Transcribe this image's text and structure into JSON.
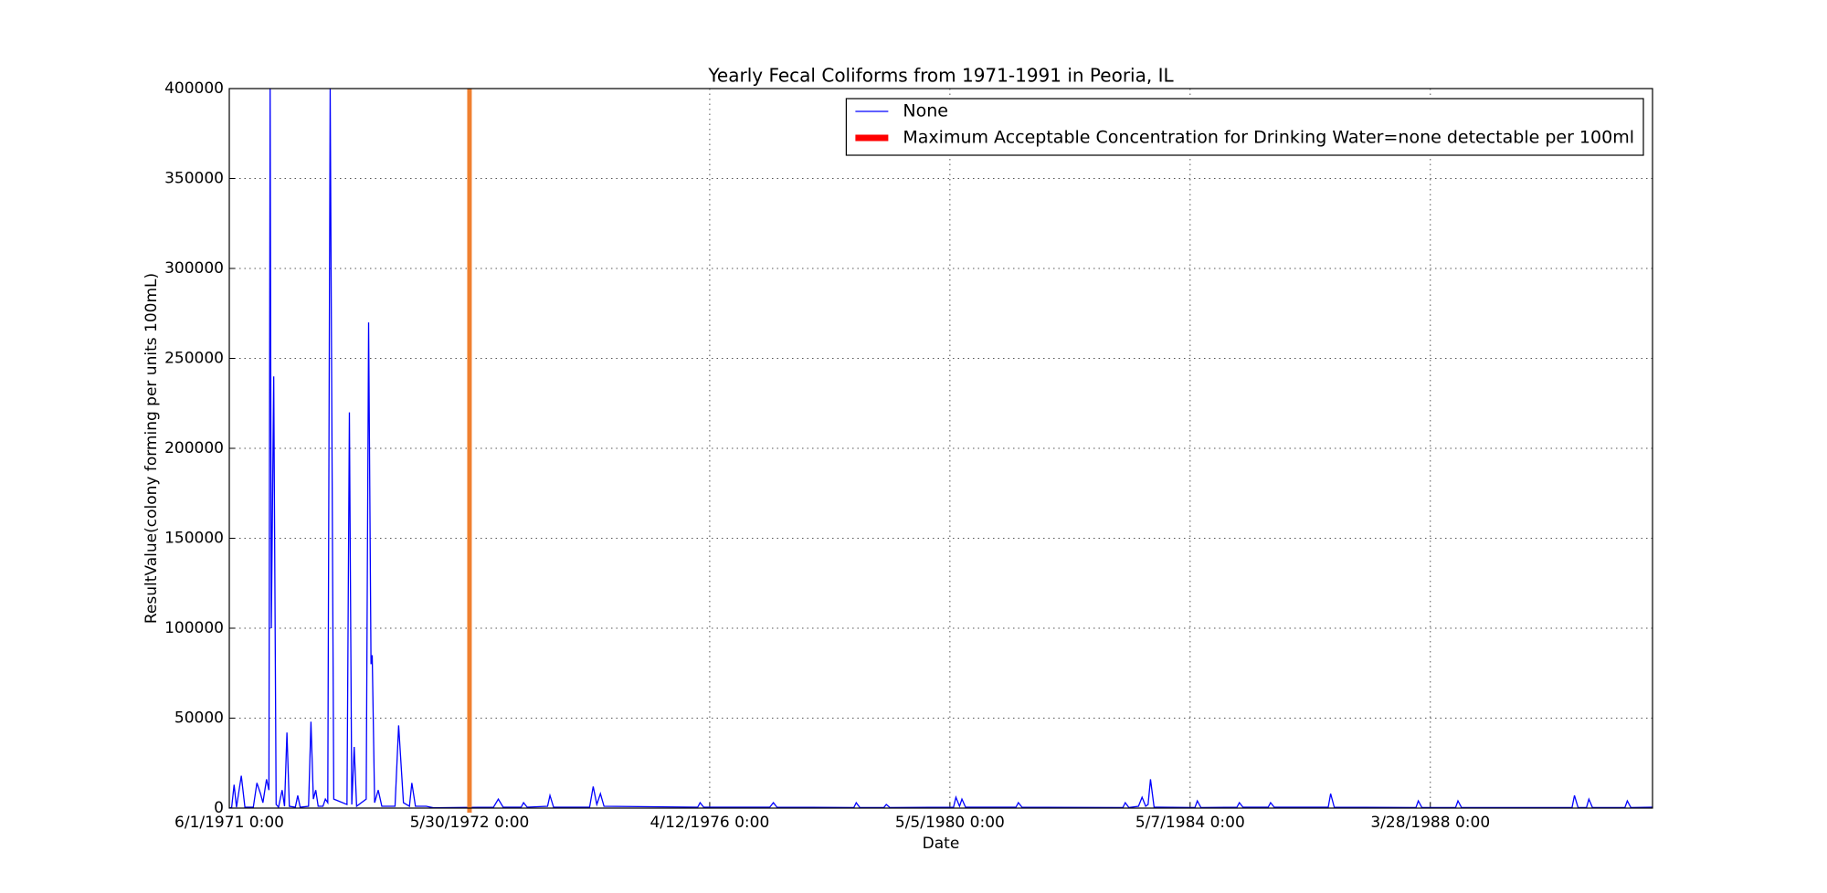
{
  "chart_data": {
    "type": "line",
    "title": "Yearly Fecal Coliforms from 1971-1991 in Peoria, IL",
    "x_label": "Date",
    "y_label": "ResultValue(colony forming per units 100mL)",
    "x": [
      0,
      2,
      4,
      6,
      10,
      13,
      20,
      23,
      26,
      28,
      31,
      33,
      34,
      35,
      37,
      39,
      41,
      44,
      46,
      48,
      50,
      55,
      57,
      59,
      66,
      68,
      70,
      72,
      74,
      78,
      80,
      82,
      84,
      87,
      98,
      100,
      102,
      104,
      106,
      114,
      116,
      118,
      119,
      121,
      124,
      127,
      138,
      141,
      145,
      150,
      152,
      155,
      164,
      170,
      220,
      224,
      228,
      243,
      245,
      248,
      265,
      267,
      270,
      300,
      303,
      306,
      309,
      312,
      390,
      392,
      395,
      450,
      453,
      456,
      520,
      522,
      525,
      545,
      547,
      550,
      603,
      605,
      608,
      610,
      613,
      655,
      657,
      660,
      744,
      746,
      749,
      757,
      760,
      763,
      765,
      767,
      770,
      804,
      806,
      809,
      839,
      841,
      844,
      865,
      867,
      870,
      915,
      917,
      920,
      988,
      990,
      993,
      1021,
      1023,
      1026,
      1118,
      1120,
      1123,
      1130,
      1132,
      1135,
      1162,
      1164,
      1167,
      1185
    ],
    "series": [
      {
        "name": "None",
        "color": "#0000ff",
        "values": [
          0,
          500,
          13000,
          500,
          18000,
          500,
          500,
          14000,
          8000,
          3000,
          16000,
          10000,
          400000,
          100000,
          240000,
          2000,
          500,
          10000,
          1000,
          42000,
          1000,
          500,
          7000,
          500,
          1000,
          48000,
          5000,
          10000,
          1000,
          1000,
          5000,
          3000,
          400000,
          5000,
          2000,
          220000,
          2000,
          34000,
          1000,
          5000,
          270000,
          80000,
          85000,
          3000,
          10000,
          1000,
          1000,
          46000,
          3000,
          1000,
          14000,
          1000,
          1000,
          200,
          500,
          5000,
          500,
          500,
          3000,
          500,
          1000,
          7000,
          500,
          500,
          12000,
          2000,
          8000,
          1000,
          500,
          3000,
          500,
          500,
          3000,
          500,
          300,
          3000,
          300,
          300,
          2000,
          300,
          500,
          6000,
          1000,
          5000,
          500,
          500,
          3000,
          500,
          300,
          3000,
          300,
          1000,
          6000,
          1000,
          2000,
          16000,
          500,
          300,
          4000,
          300,
          500,
          3000,
          500,
          500,
          3000,
          500,
          500,
          8000,
          500,
          300,
          4000,
          300,
          300,
          4000,
          300,
          300,
          7000,
          300,
          300,
          5000,
          300,
          300,
          4000,
          300,
          500
        ]
      }
    ],
    "vlines": [
      {
        "name": "Maximum Acceptable Concentration for Drinking Water=none detectable per 100ml",
        "x": 200,
        "color": "#f08030",
        "legend_color": "#ff0000"
      }
    ],
    "xlim": [
      0,
      1185
    ],
    "xticks": [
      {
        "value": 0,
        "label": "6/1/1971 0:00"
      },
      {
        "value": 200,
        "label": "5/30/1972 0:00"
      },
      {
        "value": 400,
        "label": "4/12/1976 0:00"
      },
      {
        "value": 600,
        "label": "5/5/1980 0:00"
      },
      {
        "value": 800,
        "label": "5/7/1984 0:00"
      },
      {
        "value": 1000,
        "label": "3/28/1988 0:00"
      }
    ],
    "ylim": [
      0,
      400000
    ],
    "yticks": [
      0,
      50000,
      100000,
      150000,
      200000,
      250000,
      300000,
      350000,
      400000
    ],
    "grid": true,
    "legend": "upper right"
  }
}
